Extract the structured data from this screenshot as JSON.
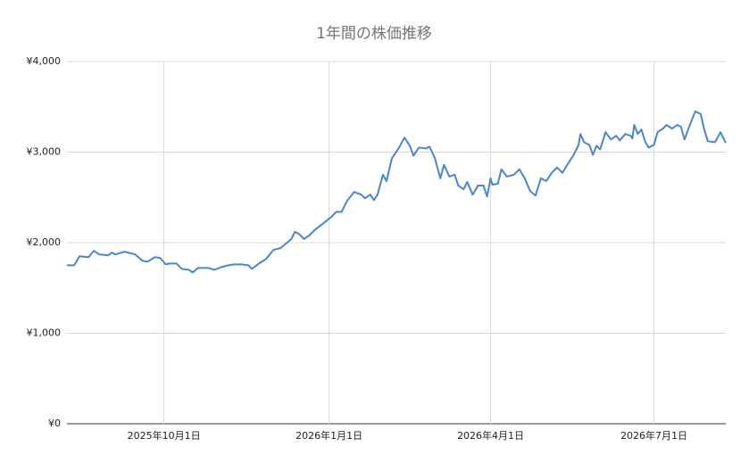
{
  "chart_data": {
    "type": "line",
    "title": "1年間の株価推移",
    "x": [
      "2025-08-08",
      "2025-08-12",
      "2025-08-15",
      "2025-08-20",
      "2025-08-23",
      "2025-08-26",
      "2025-08-31",
      "2025-09-02",
      "2025-09-04",
      "2025-09-09",
      "2025-09-15",
      "2025-09-19",
      "2025-09-22",
      "2025-09-26",
      "2025-09-29",
      "2025-10-02",
      "2025-10-04",
      "2025-10-08",
      "2025-10-11",
      "2025-10-15",
      "2025-10-17",
      "2025-10-20",
      "2025-10-26",
      "2025-10-29",
      "2025-11-02",
      "2025-11-06",
      "2025-11-09",
      "2025-11-13",
      "2025-11-17",
      "2025-11-19",
      "2025-11-23",
      "2025-11-27",
      "2025-12-01",
      "2025-12-05",
      "2025-12-08",
      "2025-12-11",
      "2025-12-13",
      "2025-12-15",
      "2025-12-18",
      "2025-12-21",
      "2025-12-24",
      "2025-12-28",
      "2026-01-02",
      "2026-01-05",
      "2026-01-08",
      "2026-01-11",
      "2026-01-15",
      "2026-01-19",
      "2026-01-21",
      "2026-01-24",
      "2026-01-26",
      "2026-01-28",
      "2026-01-31",
      "2026-02-02",
      "2026-02-05",
      "2026-02-09",
      "2026-02-12",
      "2026-02-15",
      "2026-02-17",
      "2026-02-20",
      "2026-02-24",
      "2026-02-26",
      "2026-03-01",
      "2026-03-04",
      "2026-03-06",
      "2026-03-09",
      "2026-03-12",
      "2026-03-14",
      "2026-03-17",
      "2026-03-19",
      "2026-03-22",
      "2026-03-25",
      "2026-03-28",
      "2026-03-30",
      "2026-04-01",
      "2026-04-02",
      "2026-04-05",
      "2026-04-07",
      "2026-04-10",
      "2026-04-14",
      "2026-04-17",
      "2026-04-20",
      "2026-04-23",
      "2026-04-26",
      "2026-04-29",
      "2026-05-02",
      "2026-05-05",
      "2026-05-08",
      "2026-05-11",
      "2026-05-14",
      "2026-05-17",
      "2026-05-20",
      "2026-05-21",
      "2026-05-23",
      "2026-05-26",
      "2026-05-28",
      "2026-05-30",
      "2026-06-01",
      "2026-06-04",
      "2026-06-07",
      "2026-06-10",
      "2026-06-12",
      "2026-06-15",
      "2026-06-18",
      "2026-06-19",
      "2026-06-20",
      "2026-06-22",
      "2026-06-24",
      "2026-06-26",
      "2026-06-28",
      "2026-07-01",
      "2026-07-03",
      "2026-07-06",
      "2026-07-08",
      "2026-07-11",
      "2026-07-14",
      "2026-07-16",
      "2026-07-18",
      "2026-07-21",
      "2026-07-24",
      "2026-07-27",
      "2026-07-29",
      "2026-07-31",
      "2026-08-04",
      "2026-08-07",
      "2026-08-10"
    ],
    "series": [
      {
        "color": "#4a86c8",
        "values": [
          1750,
          1750,
          1850,
          1840,
          1910,
          1870,
          1860,
          1890,
          1870,
          1900,
          1870,
          1800,
          1790,
          1840,
          1830,
          1760,
          1770,
          1770,
          1710,
          1700,
          1670,
          1720,
          1720,
          1700,
          1730,
          1750,
          1760,
          1760,
          1750,
          1710,
          1770,
          1820,
          1920,
          1940,
          1990,
          2040,
          2120,
          2100,
          2040,
          2080,
          2140,
          2200,
          2280,
          2340,
          2340,
          2460,
          2560,
          2530,
          2490,
          2530,
          2470,
          2530,
          2750,
          2680,
          2930,
          3050,
          3160,
          3070,
          2960,
          3050,
          3040,
          3060,
          2930,
          2710,
          2860,
          2730,
          2750,
          2630,
          2590,
          2670,
          2530,
          2630,
          2630,
          2510,
          2710,
          2640,
          2650,
          2810,
          2730,
          2750,
          2810,
          2710,
          2570,
          2520,
          2710,
          2680,
          2770,
          2830,
          2770,
          2870,
          2960,
          3080,
          3200,
          3110,
          3080,
          2970,
          3070,
          3030,
          3220,
          3140,
          3180,
          3130,
          3200,
          3180,
          3150,
          3300,
          3200,
          3250,
          3120,
          3050,
          3080,
          3220,
          3260,
          3300,
          3260,
          3300,
          3280,
          3140,
          3300,
          3450,
          3420,
          3250,
          3120,
          3110,
          3220,
          3100
        ]
      }
    ],
    "xlim": [
      "2025-08-08",
      "2026-08-10"
    ],
    "xticks": [
      {
        "value": "2025-10-01",
        "label": "2025年10月1日"
      },
      {
        "value": "2026-01-01",
        "label": "2026年1月1日"
      },
      {
        "value": "2026-04-01",
        "label": "2026年4月1日"
      },
      {
        "value": "2026-07-01",
        "label": "2026年7月1日"
      }
    ],
    "ylim": [
      0,
      4000
    ],
    "yticks": [
      {
        "value": 0,
        "label": "¥0"
      },
      {
        "value": 1000,
        "label": "¥1,000"
      },
      {
        "value": 2000,
        "label": "¥2,000"
      },
      {
        "value": 3000,
        "label": "¥3,000"
      },
      {
        "value": 4000,
        "label": "¥4,000"
      }
    ],
    "grid": true
  }
}
